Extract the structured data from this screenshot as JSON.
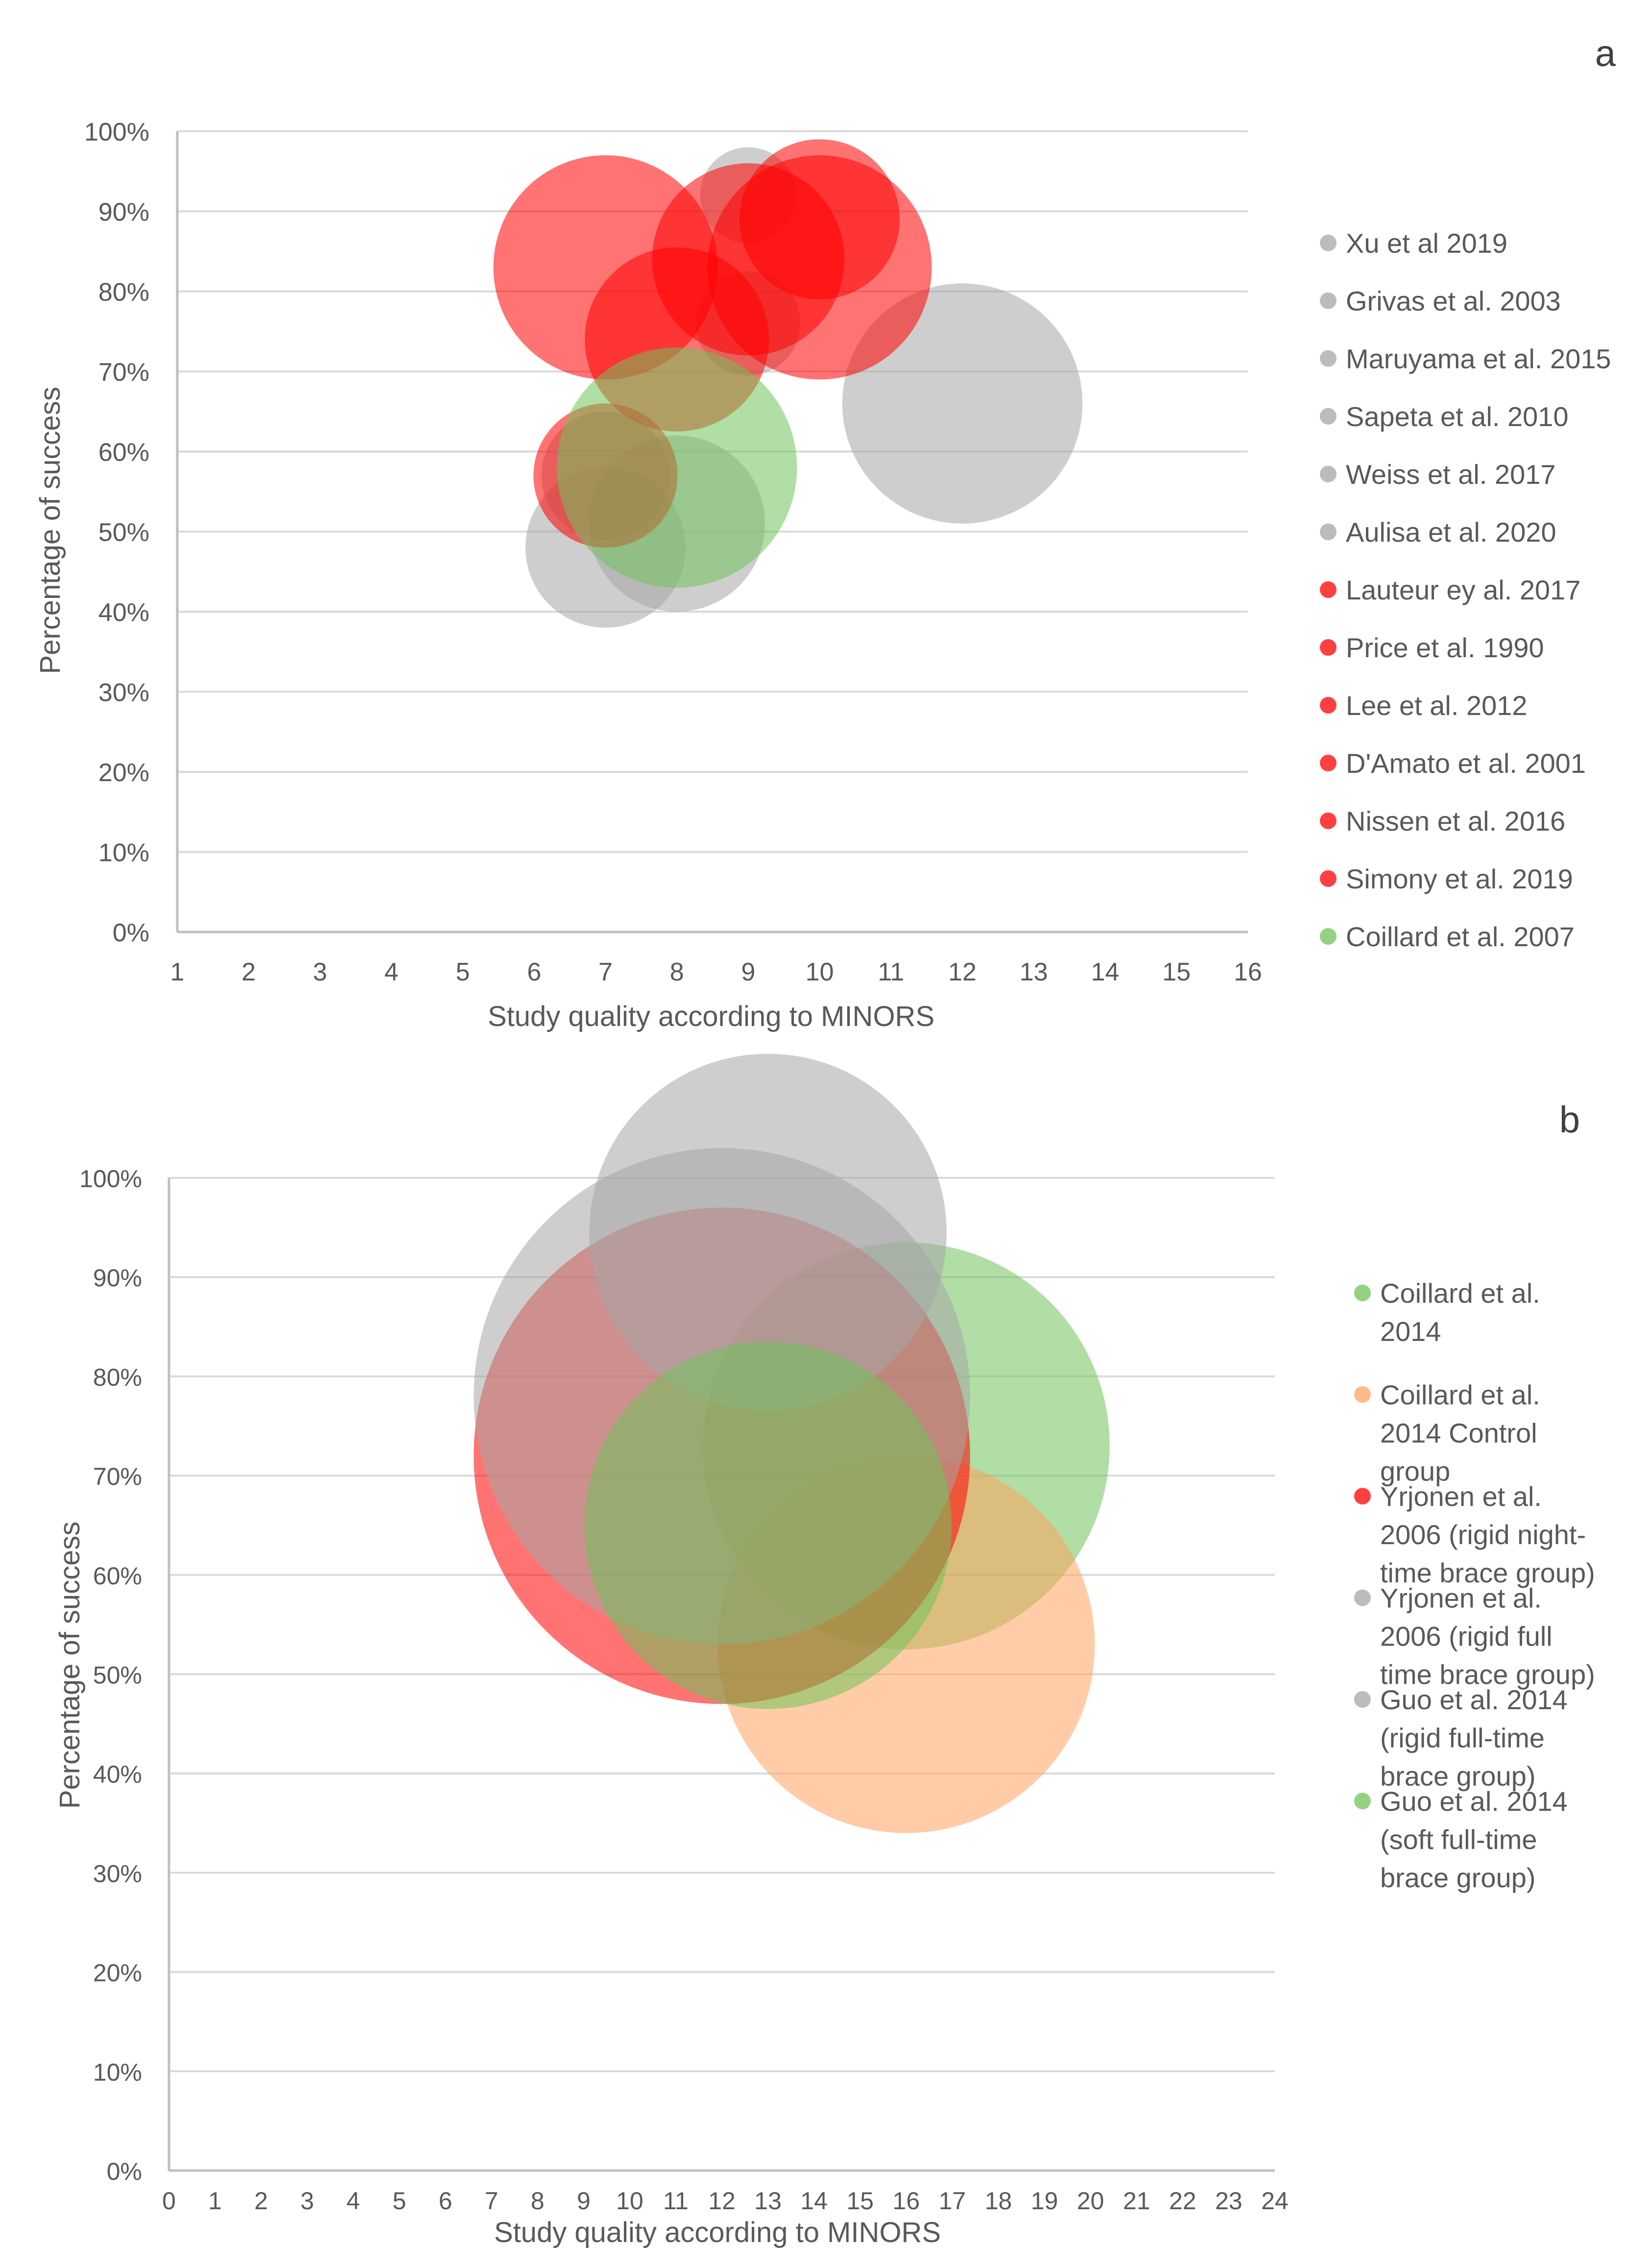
{
  "chart_data": [
    {
      "id": "a",
      "type": "bubble",
      "panel_label": "a",
      "xlabel": "Study quality according to MINORS",
      "ylabel": "Percentage of success",
      "xlim": [
        1,
        16
      ],
      "ylim": [
        0,
        100
      ],
      "x_ticks": [
        "1",
        "2",
        "3",
        "4",
        "5",
        "6",
        "7",
        "8",
        "9",
        "10",
        "11",
        "12",
        "13",
        "14",
        "15",
        "16"
      ],
      "y_ticks": [
        "0%",
        "10%",
        "20%",
        "30%",
        "40%",
        "50%",
        "60%",
        "70%",
        "80%",
        "90%",
        "100%"
      ],
      "grid": true,
      "legend_position": "right",
      "series": [
        {
          "name": "Xu et al 2019",
          "color": "#a6a6a6",
          "x": 9,
          "y": 92,
          "r": 0.6
        },
        {
          "name": "Grivas et al. 2003",
          "color": "#a6a6a6",
          "x": 7,
          "y": 48,
          "r": 1.0
        },
        {
          "name": "Maruyama et al. 2015",
          "color": "#a6a6a6",
          "x": 8,
          "y": 51,
          "r": 1.1
        },
        {
          "name": "Sapeta et al. 2010",
          "color": "#a6a6a6",
          "x": 12,
          "y": 66,
          "r": 1.5
        },
        {
          "name": "Weiss et al. 2017",
          "color": "#a6a6a6",
          "x": 9,
          "y": 76,
          "r": 0.65
        },
        {
          "name": "Aulisa et al. 2020",
          "color": "#a6a6a6",
          "x": 7,
          "y": 57,
          "r": 0.8
        },
        {
          "name": "Lauteur ey al. 2017",
          "color": "#ff0000",
          "x": 7,
          "y": 83,
          "r": 1.4
        },
        {
          "name": "Price et al. 1990",
          "color": "#ff0000",
          "x": 9,
          "y": 84,
          "r": 1.2
        },
        {
          "name": "Lee et al. 2012",
          "color": "#ff0000",
          "x": 10,
          "y": 89,
          "r": 1.0
        },
        {
          "name": "D'Amato et al. 2001",
          "color": "#ff0000",
          "x": 8,
          "y": 74,
          "r": 1.15
        },
        {
          "name": "Nissen et al. 2016",
          "color": "#ff0000",
          "x": 10,
          "y": 83,
          "r": 1.4
        },
        {
          "name": "Simony et al. 2019",
          "color": "#ff0000",
          "x": 7,
          "y": 57,
          "r": 0.9
        },
        {
          "name": "Coillard et al. 2007",
          "color": "#70c35a",
          "x": 8,
          "y": 58,
          "r": 1.5
        }
      ]
    },
    {
      "id": "b",
      "type": "bubble",
      "panel_label": "b",
      "xlabel": "Study quality according to MINORS",
      "ylabel": "Percentage of success",
      "xlim": [
        0,
        24
      ],
      "ylim": [
        0,
        100
      ],
      "x_ticks": [
        "0",
        "1",
        "2",
        "3",
        "4",
        "5",
        "6",
        "7",
        "8",
        "9",
        "10",
        "11",
        "12",
        "13",
        "14",
        "15",
        "16",
        "17",
        "18",
        "19",
        "20",
        "21",
        "22",
        "23",
        "24"
      ],
      "y_ticks": [
        "0%",
        "10%",
        "20%",
        "30%",
        "40%",
        "50%",
        "60%",
        "70%",
        "80%",
        "90%",
        "100%"
      ],
      "grid": true,
      "legend_position": "right",
      "series": [
        {
          "name_lines": [
            "Coillard et al.",
            "2014"
          ],
          "color": "#70c35a",
          "x": 16,
          "y": 73,
          "r": 2.05
        },
        {
          "name_lines": [
            "Coillard et al.",
            "2014 Control",
            "group"
          ],
          "color": "#ffa35e",
          "x": 16,
          "y": 53,
          "r": 1.9
        },
        {
          "name_lines": [
            "Yrjonen et al.",
            "2006 (rigid night-",
            "time brace group)"
          ],
          "color": "#ff0000",
          "x": 12,
          "y": 72,
          "r": 2.5
        },
        {
          "name_lines": [
            "Yrjonen et al.",
            "2006 (rigid full",
            "time brace group)"
          ],
          "color": "#a6a6a6",
          "x": 12,
          "y": 78,
          "r": 2.5
        },
        {
          "name_lines": [
            "Guo et al. 2014",
            "(rigid full-time",
            "brace group)"
          ],
          "color": "#a6a6a6",
          "x": 13,
          "y": 94.5,
          "r": 1.8
        },
        {
          "name_lines": [
            "Guo et al. 2014",
            "(soft full-time",
            "brace group)"
          ],
          "color": "#70c35a",
          "x": 13,
          "y": 65,
          "r": 1.85
        }
      ]
    }
  ]
}
